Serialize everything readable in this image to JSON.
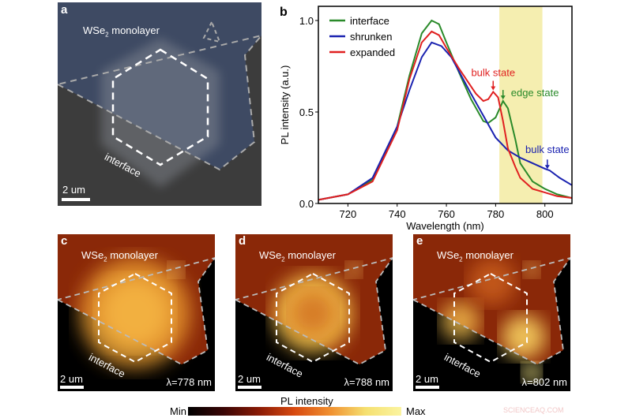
{
  "panel_a": {
    "label": "a",
    "material": "WSe",
    "sub": "2",
    "material_suffix": " monolayer",
    "interface": "interface",
    "scale": "2 um"
  },
  "chart_data": {
    "type": "line",
    "panel_label": "b",
    "xlabel": "Wavelength (nm)",
    "ylabel": "PL intensity (a.u.)",
    "xlim": [
      708,
      811
    ],
    "ylim": [
      0,
      1.08
    ],
    "xticks": [
      720,
      740,
      760,
      780,
      800
    ],
    "yticks": [
      "0.0",
      "0.5",
      "1.0"
    ],
    "ytick_values": [
      0,
      0.5,
      1.0
    ],
    "legend_position": "top-left",
    "highlight_band": [
      781.5,
      799
    ],
    "highlight_color": "#f5eeb0",
    "series": [
      {
        "name": "interface",
        "color": "#2a8a2a",
        "x": [
          708,
          720,
          730,
          740,
          745,
          750,
          754,
          757,
          760,
          765,
          770,
          775,
          777,
          780,
          783,
          785,
          788,
          790,
          795,
          800,
          805,
          811
        ],
        "y": [
          0.02,
          0.05,
          0.13,
          0.42,
          0.7,
          0.93,
          1.0,
          0.98,
          0.88,
          0.72,
          0.57,
          0.45,
          0.44,
          0.47,
          0.56,
          0.52,
          0.35,
          0.22,
          0.12,
          0.08,
          0.05,
          0.03
        ]
      },
      {
        "name": "shrunken",
        "color": "#1a22b0",
        "x": [
          708,
          720,
          730,
          740,
          745,
          750,
          754,
          758,
          762,
          766,
          770,
          775,
          780,
          785,
          790,
          795,
          800,
          802,
          806,
          811
        ],
        "y": [
          0.02,
          0.05,
          0.14,
          0.42,
          0.62,
          0.8,
          0.88,
          0.86,
          0.8,
          0.7,
          0.6,
          0.48,
          0.36,
          0.29,
          0.25,
          0.22,
          0.19,
          0.18,
          0.14,
          0.1
        ]
      },
      {
        "name": "expanded",
        "color": "#e02020",
        "x": [
          708,
          720,
          730,
          740,
          745,
          750,
          754,
          757,
          760,
          765,
          770,
          772,
          775,
          777,
          779,
          781,
          783,
          785,
          788,
          790,
          795,
          800,
          805,
          811
        ],
        "y": [
          0.02,
          0.05,
          0.12,
          0.4,
          0.68,
          0.88,
          0.94,
          0.92,
          0.85,
          0.74,
          0.64,
          0.6,
          0.56,
          0.57,
          0.61,
          0.58,
          0.45,
          0.3,
          0.2,
          0.14,
          0.08,
          0.06,
          0.04,
          0.03
        ]
      }
    ],
    "annotations": [
      {
        "text": "bulk state",
        "color": "#e02020",
        "x": 779,
        "y": 0.61
      },
      {
        "text": "edge state",
        "color": "#2a8a2a",
        "x": 783,
        "y": 0.56
      },
      {
        "text": "bulk state",
        "color": "#1a22b0",
        "x": 801,
        "y": 0.18
      }
    ]
  },
  "maps": [
    {
      "label": "c",
      "material": "WSe",
      "sub": "2",
      "material_suffix": " monolayer",
      "interface": "interface",
      "scale": "2 um",
      "wavelength": "λ=778 nm"
    },
    {
      "label": "d",
      "material": "WSe",
      "sub": "2",
      "material_suffix": " monolayer",
      "interface": "interface",
      "scale": "2 um",
      "wavelength": "λ=788 nm"
    },
    {
      "label": "e",
      "material": "WSe",
      "sub": "2",
      "material_suffix": " monolayer",
      "interface": "interface",
      "scale": "2 um",
      "wavelength": "λ=802 nm"
    }
  ],
  "colorbar": {
    "title": "PL intensity",
    "min": "Min",
    "max": "Max"
  },
  "watermark": "SCIENCEAQ.COM"
}
